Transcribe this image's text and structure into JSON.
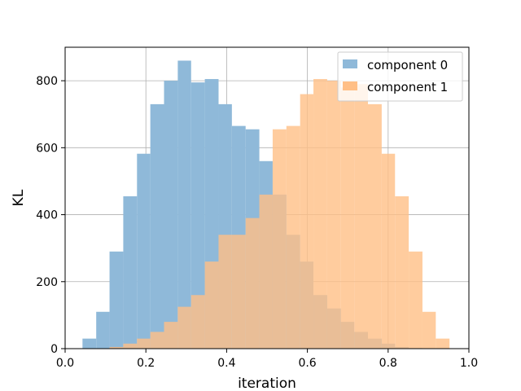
{
  "chart_data": {
    "type": "bar",
    "title": "",
    "xlabel": "iteration",
    "ylabel": "KL",
    "xlim": [
      0.0,
      1.0
    ],
    "ylim": [
      0,
      900
    ],
    "x_ticks": [
      "0.0",
      "0.2",
      "0.4",
      "0.6",
      "0.8",
      "1.0"
    ],
    "x_tick_values": [
      0.0,
      0.2,
      0.4,
      0.6,
      0.8,
      1.0
    ],
    "y_ticks": [
      "0",
      "200",
      "400",
      "600",
      "800"
    ],
    "y_tick_values": [
      0,
      200,
      400,
      600,
      800
    ],
    "grid": true,
    "legend_position": "top-right",
    "series": [
      {
        "name": "component 0",
        "color": "#8fb9d9",
        "bins": [
          [
            0.043,
            0.077,
            30
          ],
          [
            0.077,
            0.11,
            110
          ],
          [
            0.11,
            0.144,
            290
          ],
          [
            0.144,
            0.178,
            455
          ],
          [
            0.178,
            0.211,
            582
          ],
          [
            0.211,
            0.245,
            730
          ],
          [
            0.245,
            0.279,
            800
          ],
          [
            0.279,
            0.312,
            860
          ],
          [
            0.312,
            0.346,
            795
          ],
          [
            0.346,
            0.38,
            805
          ],
          [
            0.38,
            0.413,
            730
          ],
          [
            0.413,
            0.447,
            665
          ],
          [
            0.447,
            0.481,
            655
          ],
          [
            0.481,
            0.514,
            560
          ],
          [
            0.514,
            0.548,
            460
          ],
          [
            0.548,
            0.582,
            340
          ],
          [
            0.582,
            0.615,
            260
          ],
          [
            0.615,
            0.649,
            160
          ],
          [
            0.649,
            0.683,
            120
          ],
          [
            0.683,
            0.716,
            80
          ],
          [
            0.716,
            0.75,
            50
          ],
          [
            0.75,
            0.784,
            30
          ],
          [
            0.784,
            0.817,
            15
          ],
          [
            0.817,
            0.851,
            5
          ],
          [
            0.851,
            0.885,
            2
          ],
          [
            0.885,
            0.918,
            0
          ],
          [
            0.918,
            0.952,
            0
          ]
        ]
      },
      {
        "name": "component 1",
        "color": "#ffbf86",
        "bins": [
          [
            0.043,
            0.077,
            0
          ],
          [
            0.077,
            0.11,
            0
          ],
          [
            0.11,
            0.144,
            5
          ],
          [
            0.144,
            0.178,
            15
          ],
          [
            0.178,
            0.211,
            30
          ],
          [
            0.211,
            0.245,
            50
          ],
          [
            0.245,
            0.279,
            80
          ],
          [
            0.279,
            0.312,
            125
          ],
          [
            0.312,
            0.346,
            160
          ],
          [
            0.346,
            0.38,
            260
          ],
          [
            0.38,
            0.413,
            340
          ],
          [
            0.413,
            0.447,
            340
          ],
          [
            0.447,
            0.481,
            390
          ],
          [
            0.481,
            0.514,
            460
          ],
          [
            0.514,
            0.548,
            655
          ],
          [
            0.548,
            0.582,
            665
          ],
          [
            0.582,
            0.615,
            760
          ],
          [
            0.615,
            0.649,
            805
          ],
          [
            0.649,
            0.683,
            800
          ],
          [
            0.683,
            0.716,
            780
          ],
          [
            0.716,
            0.75,
            790
          ],
          [
            0.75,
            0.784,
            730
          ],
          [
            0.784,
            0.817,
            582
          ],
          [
            0.817,
            0.851,
            455
          ],
          [
            0.851,
            0.885,
            290
          ],
          [
            0.885,
            0.918,
            110
          ],
          [
            0.918,
            0.952,
            30
          ]
        ]
      }
    ]
  }
}
